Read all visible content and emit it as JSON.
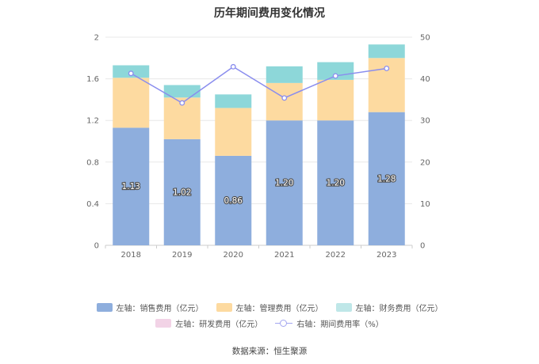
{
  "chart_data": {
    "type": "bar",
    "title": "历年期间费用变化情况",
    "categories": [
      "2018",
      "2019",
      "2020",
      "2021",
      "2022",
      "2023"
    ],
    "stacked": true,
    "series": [
      {
        "name": "左轴：销售费用（亿元）",
        "axis": "left",
        "type": "bar",
        "color": "#8eaedd",
        "values": [
          1.13,
          1.02,
          0.86,
          1.2,
          1.2,
          1.28
        ],
        "labels": [
          "1.13",
          "1.02",
          "0.86",
          "1.20",
          "1.20",
          "1.28"
        ]
      },
      {
        "name": "左轴：管理费用（亿元）",
        "axis": "left",
        "type": "bar",
        "color": "#fddaa0",
        "values": [
          0.48,
          0.4,
          0.46,
          0.36,
          0.39,
          0.52
        ]
      },
      {
        "name": "左轴：财务费用（亿元）",
        "axis": "left",
        "type": "bar",
        "color": "#8dd7d9",
        "values": [
          0.12,
          0.12,
          0.13,
          0.16,
          0.17,
          0.13
        ]
      },
      {
        "name": "左轴：研发费用（亿元）",
        "axis": "left",
        "type": "bar",
        "color": "#f2d3e6",
        "values": [
          0,
          0,
          0,
          0,
          0,
          0
        ]
      },
      {
        "name": "右轴：期间费用率（%）",
        "axis": "right",
        "type": "line",
        "color": "#8a8dee",
        "values": [
          41.3,
          34.2,
          42.9,
          35.4,
          40.7,
          42.5
        ]
      }
    ],
    "y_left": {
      "ticks": [
        "0",
        "0.4",
        "0.8",
        "1.2",
        "1.6",
        "2"
      ],
      "ylim": [
        0,
        2
      ]
    },
    "y_right": {
      "ticks": [
        "0",
        "10",
        "20",
        "30",
        "40",
        "50"
      ],
      "ylim": [
        0,
        50
      ]
    },
    "legend_position": "bottom",
    "grid": true
  },
  "source": "数据来源：恒生聚源"
}
